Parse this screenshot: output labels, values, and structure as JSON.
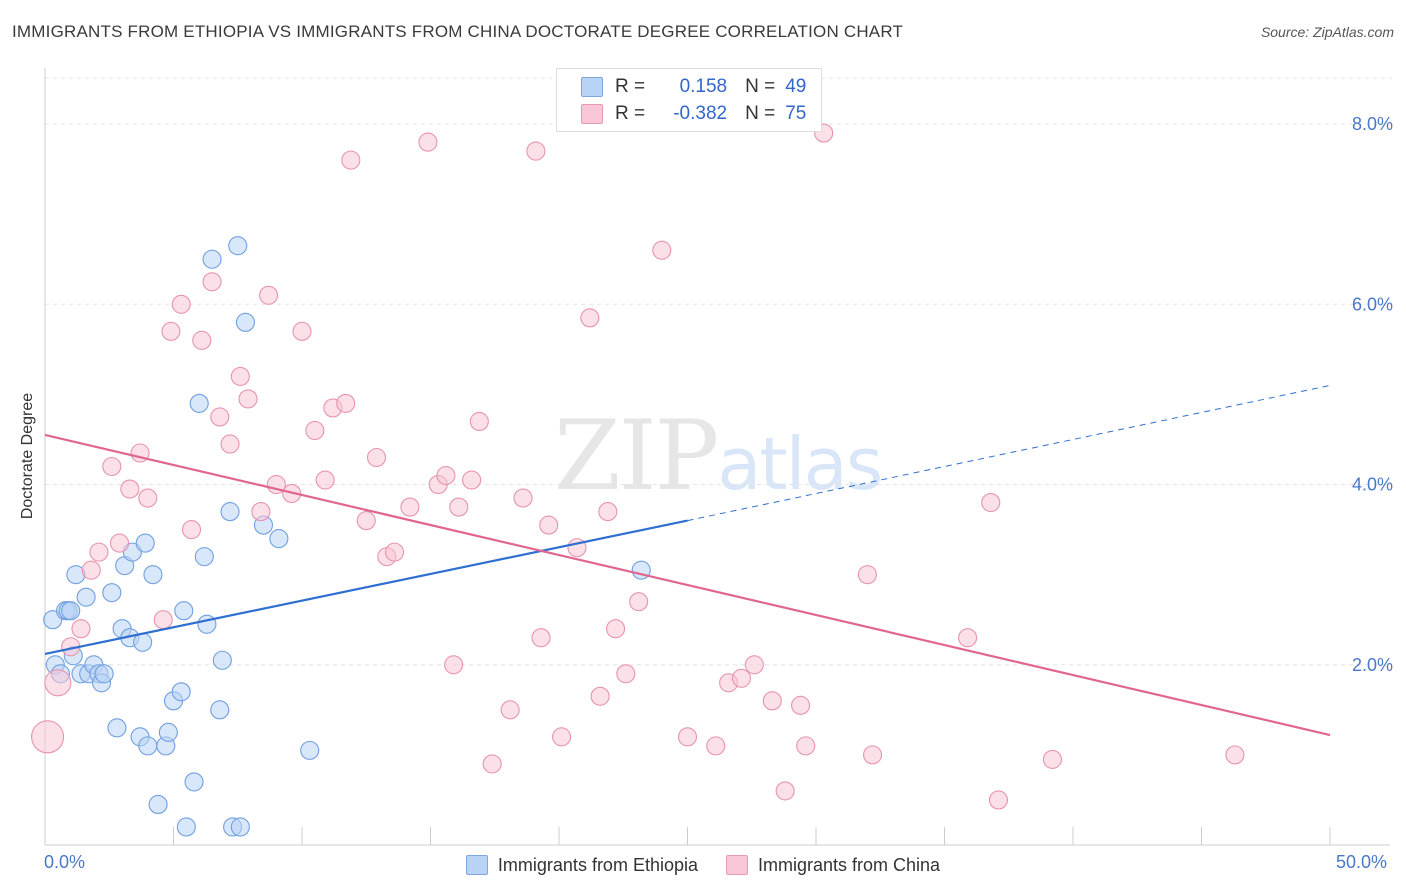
{
  "title": "IMMIGRANTS FROM ETHIOPIA VS IMMIGRANTS FROM CHINA DOCTORATE DEGREE CORRELATION CHART",
  "source": "Source: ZipAtlas.com",
  "watermark": {
    "zip": "ZIP",
    "atlas": "atlas"
  },
  "legend": {
    "r_label": "R =",
    "n_label": "N =",
    "rows": [
      {
        "r": "0.158",
        "n": "49"
      },
      {
        "r": "-0.382",
        "n": "75"
      }
    ]
  },
  "colors": {
    "ethiopia_fill": "#b9d3f5",
    "ethiopia_stroke": "#6f9fe0",
    "ethiopia_line": "#2f6fcf",
    "china_fill": "#f8c6d6",
    "china_stroke": "#e793b0",
    "china_line": "#e06690",
    "tick_label": "#4a78c8"
  },
  "chart_data": {
    "type": "scatter",
    "xlabel": "",
    "ylabel": "Doctorate Degree",
    "xlim": [
      0,
      50
    ],
    "ylim": [
      0,
      8.6
    ],
    "x_tick_labels": [
      "0.0%",
      "50.0%"
    ],
    "y_ticks": [
      2,
      4,
      6,
      8
    ],
    "y_tick_labels": [
      "2.0%",
      "4.0%",
      "6.0%",
      "8.0%"
    ],
    "grid": true,
    "legend_position": "top-center",
    "series": [
      {
        "name": "Immigrants from Ethiopia",
        "r": 0.158,
        "n": 49,
        "trend": {
          "x0": 0,
          "y0": 2.12,
          "x1": 25,
          "y1": 3.6,
          "dash_to_x": 50,
          "dash_to_y": 5.1
        },
        "points": [
          [
            0.3,
            2.5,
            9
          ],
          [
            0.4,
            2.0,
            9
          ],
          [
            0.6,
            1.9,
            9
          ],
          [
            0.8,
            2.6,
            9
          ],
          [
            0.9,
            2.6,
            9
          ],
          [
            1.0,
            2.6,
            9
          ],
          [
            1.1,
            2.1,
            9
          ],
          [
            1.2,
            3.0,
            9
          ],
          [
            1.4,
            1.9,
            9
          ],
          [
            1.6,
            2.75,
            9
          ],
          [
            1.7,
            1.9,
            9
          ],
          [
            1.9,
            2.0,
            9
          ],
          [
            2.1,
            1.9,
            9
          ],
          [
            2.2,
            1.8,
            9
          ],
          [
            2.3,
            1.9,
            9
          ],
          [
            2.6,
            2.8,
            9
          ],
          [
            2.8,
            1.3,
            9
          ],
          [
            3.0,
            2.4,
            9
          ],
          [
            3.1,
            3.1,
            9
          ],
          [
            3.3,
            2.3,
            9
          ],
          [
            3.4,
            3.25,
            9
          ],
          [
            3.7,
            1.2,
            9
          ],
          [
            3.8,
            2.25,
            9
          ],
          [
            3.9,
            3.35,
            9
          ],
          [
            4.0,
            1.1,
            9
          ],
          [
            4.2,
            3.0,
            9
          ],
          [
            4.4,
            0.45,
            9
          ],
          [
            4.7,
            1.1,
            9
          ],
          [
            4.8,
            1.25,
            9
          ],
          [
            5.0,
            1.6,
            9
          ],
          [
            5.3,
            1.7,
            9
          ],
          [
            5.4,
            2.6,
            9
          ],
          [
            5.5,
            0.2,
            9
          ],
          [
            5.8,
            0.7,
            9
          ],
          [
            6.0,
            4.9,
            9
          ],
          [
            6.2,
            3.2,
            9
          ],
          [
            6.3,
            2.45,
            9
          ],
          [
            6.5,
            6.5,
            9
          ],
          [
            6.8,
            1.5,
            9
          ],
          [
            6.9,
            2.05,
            9
          ],
          [
            7.2,
            3.7,
            9
          ],
          [
            7.3,
            0.2,
            9
          ],
          [
            7.5,
            6.65,
            9
          ],
          [
            7.6,
            0.2,
            9
          ],
          [
            7.8,
            5.8,
            9
          ],
          [
            8.5,
            3.55,
            9
          ],
          [
            9.1,
            3.4,
            9
          ],
          [
            10.3,
            1.05,
            9
          ],
          [
            23.2,
            3.05,
            9
          ]
        ]
      },
      {
        "name": "Immigrants from China",
        "r": -0.382,
        "n": 75,
        "trend": {
          "x0": 0,
          "y0": 4.55,
          "x1": 50,
          "y1": 1.22
        },
        "points": [
          [
            0.1,
            1.2,
            16
          ],
          [
            0.5,
            1.8,
            13
          ],
          [
            1.0,
            2.2,
            9
          ],
          [
            1.4,
            2.4,
            9
          ],
          [
            1.8,
            3.05,
            9
          ],
          [
            2.1,
            3.25,
            9
          ],
          [
            2.6,
            4.2,
            9
          ],
          [
            2.9,
            3.35,
            9
          ],
          [
            3.3,
            3.95,
            9
          ],
          [
            3.7,
            4.35,
            9
          ],
          [
            4.0,
            3.85,
            9
          ],
          [
            4.6,
            2.5,
            9
          ],
          [
            4.9,
            5.7,
            9
          ],
          [
            5.3,
            6.0,
            9
          ],
          [
            5.7,
            3.5,
            9
          ],
          [
            6.1,
            5.6,
            9
          ],
          [
            6.5,
            6.25,
            9
          ],
          [
            6.8,
            4.75,
            9
          ],
          [
            7.2,
            4.45,
            9
          ],
          [
            7.6,
            5.2,
            9
          ],
          [
            7.9,
            4.95,
            9
          ],
          [
            8.4,
            3.7,
            9
          ],
          [
            8.7,
            6.1,
            9
          ],
          [
            9.0,
            4.0,
            9
          ],
          [
            9.6,
            3.9,
            9
          ],
          [
            10.0,
            5.7,
            9
          ],
          [
            10.5,
            4.6,
            9
          ],
          [
            10.9,
            4.05,
            9
          ],
          [
            11.2,
            4.85,
            9
          ],
          [
            11.7,
            4.9,
            9
          ],
          [
            11.9,
            7.6,
            9
          ],
          [
            12.5,
            3.6,
            9
          ],
          [
            12.9,
            4.3,
            9
          ],
          [
            13.3,
            3.2,
            9
          ],
          [
            13.6,
            3.25,
            9
          ],
          [
            14.2,
            3.75,
            9
          ],
          [
            14.9,
            7.8,
            9
          ],
          [
            15.3,
            4.0,
            9
          ],
          [
            15.6,
            4.1,
            9
          ],
          [
            15.9,
            2.0,
            9
          ],
          [
            16.1,
            3.75,
            9
          ],
          [
            16.6,
            4.05,
            9
          ],
          [
            16.9,
            4.7,
            9
          ],
          [
            17.4,
            0.9,
            9
          ],
          [
            18.1,
            1.5,
            9
          ],
          [
            18.6,
            3.85,
            9
          ],
          [
            19.1,
            7.7,
            9
          ],
          [
            19.3,
            2.3,
            9
          ],
          [
            19.6,
            3.55,
            9
          ],
          [
            20.1,
            1.2,
            9
          ],
          [
            20.7,
            3.3,
            9
          ],
          [
            21.2,
            5.85,
            9
          ],
          [
            21.6,
            1.65,
            9
          ],
          [
            21.9,
            3.7,
            9
          ],
          [
            22.2,
            2.4,
            9
          ],
          [
            22.6,
            1.9,
            9
          ],
          [
            23.1,
            2.7,
            9
          ],
          [
            24.0,
            6.6,
            9
          ],
          [
            25.0,
            1.2,
            9
          ],
          [
            26.1,
            1.1,
            9
          ],
          [
            26.6,
            1.8,
            9
          ],
          [
            27.1,
            1.85,
            9
          ],
          [
            27.6,
            2.0,
            9
          ],
          [
            28.3,
            1.6,
            9
          ],
          [
            28.8,
            0.6,
            9
          ],
          [
            29.4,
            1.55,
            9
          ],
          [
            29.6,
            1.1,
            9
          ],
          [
            30.3,
            7.9,
            9
          ],
          [
            32.0,
            3.0,
            9
          ],
          [
            32.2,
            1.0,
            9
          ],
          [
            35.9,
            2.3,
            9
          ],
          [
            36.8,
            3.8,
            9
          ],
          [
            37.1,
            0.5,
            9
          ],
          [
            39.2,
            0.95,
            9
          ],
          [
            46.3,
            1.0,
            9
          ]
        ]
      }
    ]
  }
}
